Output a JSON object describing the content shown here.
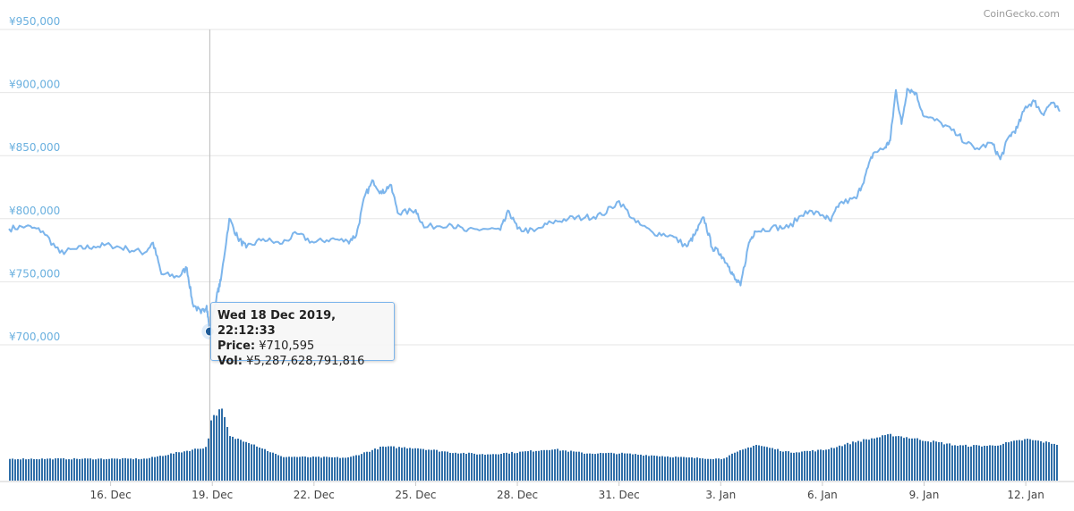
{
  "credit": "CoinGecko.com",
  "colors": {
    "line": "#7cb5ec",
    "bar": "#2f6ea8",
    "grid": "#e6e6e6",
    "ylabel": "#6ab0df",
    "xlabel": "#444444",
    "crosshair": "#bbbbbb",
    "marker": "#1f5c99"
  },
  "tooltip": {
    "date": "Wed 18 Dec 2019, 22:12:33",
    "price_label": "Price:",
    "price_value": "¥710,595",
    "vol_label": "Vol:",
    "vol_value": "¥5,287,628,791,816"
  },
  "chart_data": {
    "type": "line",
    "currency": "JPY",
    "ylim": [
      700000,
      950000
    ],
    "yticks": [
      700000,
      750000,
      800000,
      850000,
      900000,
      950000
    ],
    "ytick_labels": [
      "¥700,000",
      "¥750,000",
      "¥800,000",
      "¥850,000",
      "¥900,000",
      "¥950,000"
    ],
    "x_start_date": "2019-12-13",
    "x_end_date": "2020-01-13",
    "xticks": [
      "2019-12-16",
      "2019-12-19",
      "2019-12-22",
      "2019-12-25",
      "2019-12-28",
      "2019-12-31",
      "2020-01-03",
      "2020-01-06",
      "2020-01-09",
      "2020-01-12"
    ],
    "xtick_labels": [
      "16. Dec",
      "19. Dec",
      "22. Dec",
      "25. Dec",
      "28. Dec",
      "31. Dec",
      "3. Jan",
      "6. Jan",
      "9. Jan",
      "12. Jan"
    ],
    "grid": true,
    "legend": "none",
    "series": [
      {
        "values": [
          [
            "2019-12-13",
            792000
          ],
          [
            "2019-12-13 12:00",
            794000
          ],
          [
            "2019-12-14",
            790000
          ],
          [
            "2019-12-14 12:00",
            773000
          ],
          [
            "2019-12-15",
            776000
          ],
          [
            "2019-12-15 12:00",
            778000
          ],
          [
            "2019-12-16",
            779000
          ],
          [
            "2019-12-16 12:00",
            776000
          ],
          [
            "2019-12-17",
            773000
          ],
          [
            "2019-12-17 06:00",
            781000
          ],
          [
            "2019-12-17 12:00",
            756000
          ],
          [
            "2019-12-18",
            754000
          ],
          [
            "2019-12-18 06:00",
            761000
          ],
          [
            "2019-12-18 10:00",
            733000
          ],
          [
            "2019-12-18 16:00",
            725000
          ],
          [
            "2019-12-18 20:00",
            731000
          ],
          [
            "2019-12-18 22:12",
            710595
          ],
          [
            "2019-12-19 03:00",
            738000
          ],
          [
            "2019-12-19 06:00",
            751000
          ],
          [
            "2019-12-19 12:00",
            800000
          ],
          [
            "2019-12-19 18:00",
            785000
          ],
          [
            "2019-12-20",
            777000
          ],
          [
            "2019-12-20 12:00",
            784000
          ],
          [
            "2019-12-21",
            780000
          ],
          [
            "2019-12-21 12:00",
            788000
          ],
          [
            "2019-12-22",
            781000
          ],
          [
            "2019-12-22 12:00",
            784000
          ],
          [
            "2019-12-23",
            782000
          ],
          [
            "2019-12-23 06:00",
            787000
          ],
          [
            "2019-12-23 12:00",
            818000
          ],
          [
            "2019-12-23 18:00",
            830000
          ],
          [
            "2019-12-24",
            820000
          ],
          [
            "2019-12-24 06:00",
            827000
          ],
          [
            "2019-12-24 12:00",
            804000
          ],
          [
            "2019-12-25",
            807000
          ],
          [
            "2019-12-25 06:00",
            793000
          ],
          [
            "2019-12-26",
            796000
          ],
          [
            "2019-12-26 12:00",
            790000
          ],
          [
            "2019-12-27",
            792000
          ],
          [
            "2019-12-27 12:00",
            791000
          ],
          [
            "2019-12-27 18:00",
            806000
          ],
          [
            "2019-12-28",
            792000
          ],
          [
            "2019-12-28 12:00",
            790000
          ],
          [
            "2019-12-29",
            797000
          ],
          [
            "2019-12-29 12:00",
            800000
          ],
          [
            "2019-12-30",
            801000
          ],
          [
            "2019-12-30 12:00",
            803000
          ],
          [
            "2019-12-31",
            814000
          ],
          [
            "2019-12-31 12:00",
            797000
          ],
          [
            "2020-01-01",
            789000
          ],
          [
            "2020-01-01 12:00",
            787000
          ],
          [
            "2020-01-02",
            778000
          ],
          [
            "2020-01-02 06:00",
            788000
          ],
          [
            "2020-01-02 12:00",
            801000
          ],
          [
            "2020-01-02 18:00",
            777000
          ],
          [
            "2020-01-03",
            772000
          ],
          [
            "2020-01-03 06:00",
            762000
          ],
          [
            "2020-01-03 10:00",
            752000
          ],
          [
            "2020-01-03 14:00",
            747000
          ],
          [
            "2020-01-03 20:00",
            781000
          ],
          [
            "2020-01-04",
            790000
          ],
          [
            "2020-01-04 12:00",
            793000
          ],
          [
            "2020-01-05",
            793000
          ],
          [
            "2020-01-05 12:00",
            806000
          ],
          [
            "2020-01-06",
            803000
          ],
          [
            "2020-01-06 06:00",
            798000
          ],
          [
            "2020-01-06 12:00",
            812000
          ],
          [
            "2020-01-07",
            816000
          ],
          [
            "2020-01-07 06:00",
            833000
          ],
          [
            "2020-01-07 12:00",
            852000
          ],
          [
            "2020-01-07 20:00",
            856000
          ],
          [
            "2020-01-08",
            862000
          ],
          [
            "2020-01-08 04:00",
            902000
          ],
          [
            "2020-01-08 08:00",
            875000
          ],
          [
            "2020-01-08 12:00",
            903000
          ],
          [
            "2020-01-08 18:00",
            900000
          ],
          [
            "2020-01-09",
            881000
          ],
          [
            "2020-01-09 12:00",
            876000
          ],
          [
            "2020-01-10",
            866000
          ],
          [
            "2020-01-10 12:00",
            855000
          ],
          [
            "2020-01-11",
            860000
          ],
          [
            "2020-01-11 06:00",
            847000
          ],
          [
            "2020-01-11 12:00",
            865000
          ],
          [
            "2020-01-11 18:00",
            872000
          ],
          [
            "2020-01-12",
            889000
          ],
          [
            "2020-01-12 06:00",
            893000
          ],
          [
            "2020-01-12 12:00",
            883000
          ],
          [
            "2020-01-12 18:00",
            892000
          ],
          [
            "2020-01-13",
            885000
          ]
        ]
      }
    ],
    "volume_series": {
      "values": [
        [
          "2019-12-13",
          1
        ],
        [
          "2019-12-16",
          1
        ],
        [
          "2019-12-17",
          1
        ],
        [
          "2019-12-18",
          1.3
        ],
        [
          "2019-12-18 20:00",
          1.55
        ],
        [
          "2019-12-18 22:12",
          2.8
        ],
        [
          "2019-12-19 06:00",
          3.3
        ],
        [
          "2019-12-19 12:00",
          2.0
        ],
        [
          "2019-12-20",
          1.8
        ],
        [
          "2019-12-21",
          1.1
        ],
        [
          "2019-12-23",
          1.05
        ],
        [
          "2019-12-24",
          1.55
        ],
        [
          "2019-12-25",
          1.5
        ],
        [
          "2019-12-26",
          1.3
        ],
        [
          "2019-12-27",
          1.2
        ],
        [
          "2019-12-28",
          1.3
        ],
        [
          "2019-12-29",
          1.45
        ],
        [
          "2019-12-30",
          1.25
        ],
        [
          "2019-12-31",
          1.25
        ],
        [
          "2020-01-01",
          1.15
        ],
        [
          "2020-01-02",
          1.05
        ],
        [
          "2020-01-03",
          1.0
        ],
        [
          "2020-01-04",
          1.65
        ],
        [
          "2020-01-05",
          1.3
        ],
        [
          "2020-01-06",
          1.4
        ],
        [
          "2020-01-07",
          1.8
        ],
        [
          "2020-01-08",
          2.1
        ],
        [
          "2020-01-09",
          1.85
        ],
        [
          "2020-01-10",
          1.6
        ],
        [
          "2020-01-11",
          1.6
        ],
        [
          "2020-01-12",
          1.9
        ],
        [
          "2020-01-13",
          1.65
        ]
      ]
    }
  }
}
